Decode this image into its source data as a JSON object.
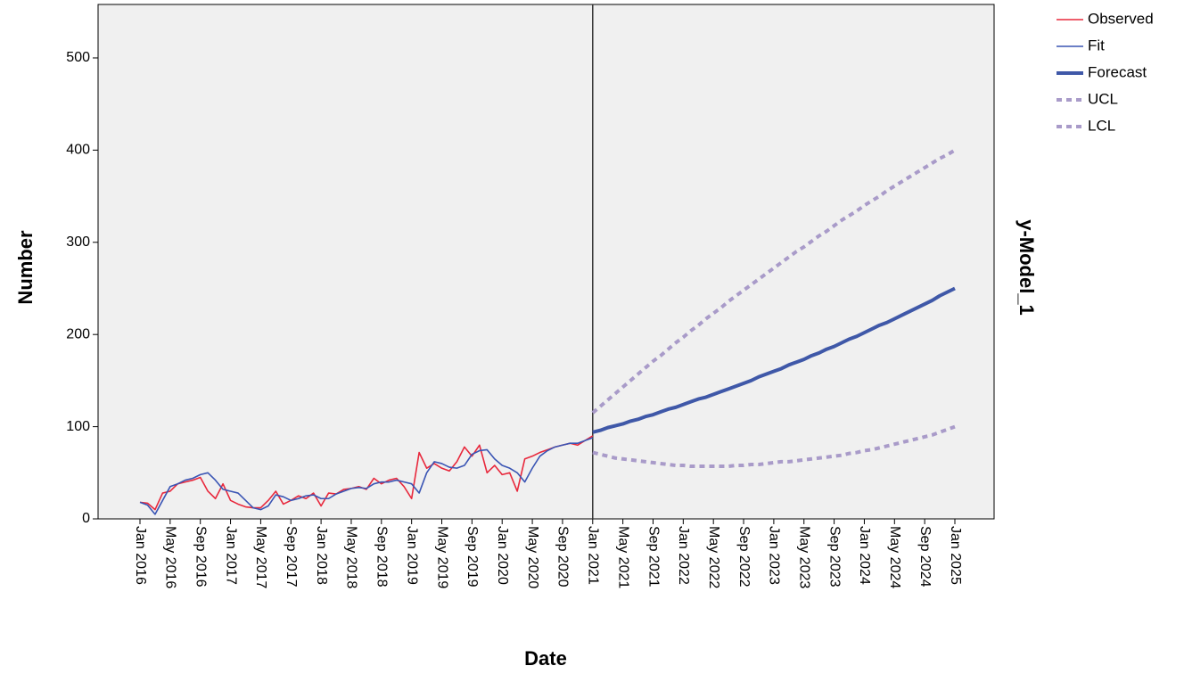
{
  "chart_data": {
    "type": "line",
    "y_label": "Number",
    "x_label": "Date",
    "right_label": "y-Model_1",
    "categories": [
      "Jan 2016",
      null,
      null,
      null,
      "May 2016",
      null,
      null,
      null,
      "Sep 2016",
      null,
      null,
      null,
      "Jan 2017",
      null,
      null,
      null,
      "May 2017",
      null,
      null,
      null,
      "Sep 2017",
      null,
      null,
      null,
      "Jan 2018",
      null,
      null,
      null,
      "May 2018",
      null,
      null,
      null,
      "Sep 2018",
      null,
      null,
      null,
      "Jan 2019",
      null,
      null,
      null,
      "May 2019",
      null,
      null,
      null,
      "Sep 2019",
      null,
      null,
      null,
      "Jan 2020",
      null,
      null,
      null,
      "May 2020",
      null,
      null,
      null,
      "Sep 2020",
      null,
      null,
      null,
      "Jan 2021",
      null,
      null,
      null,
      "May 2021",
      null,
      null,
      null,
      "Sep 2021",
      null,
      null,
      null,
      "Jan 2022",
      null,
      null,
      null,
      "May 2022",
      null,
      null,
      null,
      "Sep 2022",
      null,
      null,
      null,
      "Jan 2023",
      null,
      null,
      null,
      "May 2023",
      null,
      null,
      null,
      "Sep 2023",
      null,
      null,
      null,
      "Jan 2024",
      null,
      null,
      null,
      "May 2024",
      null,
      null,
      null,
      "Sep 2024",
      null,
      null,
      null,
      "Jan 2025"
    ],
    "series": [
      {
        "name": "Observed",
        "color": "#e8283c",
        "line_width": 1.6,
        "dashed": false,
        "values": [
          18,
          17,
          10,
          28,
          30,
          38,
          40,
          42,
          45,
          30,
          22,
          38,
          20,
          16,
          13,
          12,
          12,
          20,
          30,
          16,
          20,
          25,
          22,
          28,
          14,
          28,
          27,
          32,
          33,
          35,
          32,
          44,
          38,
          42,
          44,
          35,
          22,
          72,
          55,
          60,
          55,
          52,
          62,
          78,
          68,
          80,
          50,
          58,
          48,
          50,
          30,
          65,
          68,
          72,
          75,
          78,
          80,
          82,
          80,
          85,
          90,
          null,
          null,
          null,
          null,
          null,
          null,
          null,
          null,
          null,
          null,
          null,
          null,
          null,
          null,
          null,
          null,
          null,
          null,
          null,
          null,
          null,
          null,
          null,
          null,
          null,
          null,
          null,
          null,
          null,
          null,
          null,
          null,
          null,
          null,
          null,
          null,
          null,
          null,
          null,
          null,
          null,
          null,
          null,
          null,
          null,
          null,
          null,
          null
        ]
      },
      {
        "name": "Fit",
        "color": "#3a55b4",
        "line_width": 1.6,
        "dashed": false,
        "values": [
          18,
          15,
          5,
          20,
          35,
          38,
          42,
          44,
          48,
          50,
          42,
          32,
          30,
          28,
          20,
          12,
          10,
          14,
          26,
          24,
          20,
          22,
          25,
          26,
          22,
          22,
          27,
          30,
          33,
          34,
          33,
          38,
          40,
          40,
          42,
          40,
          38,
          28,
          50,
          62,
          60,
          56,
          55,
          58,
          70,
          74,
          75,
          65,
          58,
          55,
          50,
          40,
          55,
          68,
          74,
          78,
          80,
          82,
          82,
          85,
          88,
          null,
          null,
          null,
          null,
          null,
          null,
          null,
          null,
          null,
          null,
          null,
          null,
          null,
          null,
          null,
          null,
          null,
          null,
          null,
          null,
          null,
          null,
          null,
          null,
          null,
          null,
          null,
          null,
          null,
          null,
          null,
          null,
          null,
          null,
          null,
          null,
          null,
          null,
          null,
          null,
          null,
          null,
          null,
          null,
          null,
          null,
          null,
          null
        ]
      },
      {
        "name": "Forecast",
        "color": "#3f58a8",
        "line_width": 4,
        "dashed": false,
        "values": [
          null,
          null,
          null,
          null,
          null,
          null,
          null,
          null,
          null,
          null,
          null,
          null,
          null,
          null,
          null,
          null,
          null,
          null,
          null,
          null,
          null,
          null,
          null,
          null,
          null,
          null,
          null,
          null,
          null,
          null,
          null,
          null,
          null,
          null,
          null,
          null,
          null,
          null,
          null,
          null,
          null,
          null,
          null,
          null,
          null,
          null,
          null,
          null,
          null,
          null,
          null,
          null,
          null,
          null,
          null,
          null,
          null,
          null,
          null,
          null,
          94,
          96,
          99,
          101,
          103,
          106,
          108,
          111,
          113,
          116,
          119,
          121,
          124,
          127,
          130,
          132,
          135,
          138,
          141,
          144,
          147,
          150,
          154,
          157,
          160,
          163,
          167,
          170,
          173,
          177,
          180,
          184,
          187,
          191,
          195,
          198,
          202,
          206,
          210,
          213,
          217,
          221,
          225,
          229,
          233,
          237,
          242,
          246,
          250
        ]
      },
      {
        "name": "UCL",
        "color": "#a99bc9",
        "line_width": 4,
        "dashed": true,
        "values": [
          null,
          null,
          null,
          null,
          null,
          null,
          null,
          null,
          null,
          null,
          null,
          null,
          null,
          null,
          null,
          null,
          null,
          null,
          null,
          null,
          null,
          null,
          null,
          null,
          null,
          null,
          null,
          null,
          null,
          null,
          null,
          null,
          null,
          null,
          null,
          null,
          null,
          null,
          null,
          null,
          null,
          null,
          null,
          null,
          null,
          null,
          null,
          null,
          null,
          null,
          null,
          null,
          null,
          null,
          null,
          null,
          null,
          null,
          null,
          null,
          115,
          122,
          129,
          136,
          143,
          150,
          157,
          164,
          171,
          177,
          184,
          191,
          197,
          204,
          210,
          217,
          223,
          229,
          236,
          242,
          248,
          254,
          260,
          266,
          272,
          278,
          284,
          290,
          295,
          301,
          307,
          312,
          318,
          324,
          329,
          334,
          340,
          345,
          350,
          356,
          361,
          366,
          371,
          376,
          381,
          386,
          391,
          395,
          400
        ]
      },
      {
        "name": "LCL",
        "color": "#a99bc9",
        "line_width": 4,
        "dashed": true,
        "values": [
          null,
          null,
          null,
          null,
          null,
          null,
          null,
          null,
          null,
          null,
          null,
          null,
          null,
          null,
          null,
          null,
          null,
          null,
          null,
          null,
          null,
          null,
          null,
          null,
          null,
          null,
          null,
          null,
          null,
          null,
          null,
          null,
          null,
          null,
          null,
          null,
          null,
          null,
          null,
          null,
          null,
          null,
          null,
          null,
          null,
          null,
          null,
          null,
          null,
          null,
          null,
          null,
          null,
          null,
          null,
          null,
          null,
          null,
          null,
          null,
          72,
          70,
          68,
          66,
          65,
          64,
          63,
          62,
          61,
          60,
          59,
          58,
          58,
          57,
          57,
          57,
          57,
          57,
          57,
          58,
          58,
          59,
          59,
          60,
          61,
          62,
          62,
          63,
          64,
          65,
          66,
          67,
          68,
          69,
          71,
          72,
          74,
          75,
          77,
          79,
          81,
          83,
          85,
          87,
          89,
          91,
          94,
          97,
          100
        ]
      }
    ],
    "ylim": [
      0,
      558
    ],
    "yticks": [
      0,
      100,
      200,
      300,
      400,
      500
    ],
    "grid": false,
    "legend": "right"
  }
}
